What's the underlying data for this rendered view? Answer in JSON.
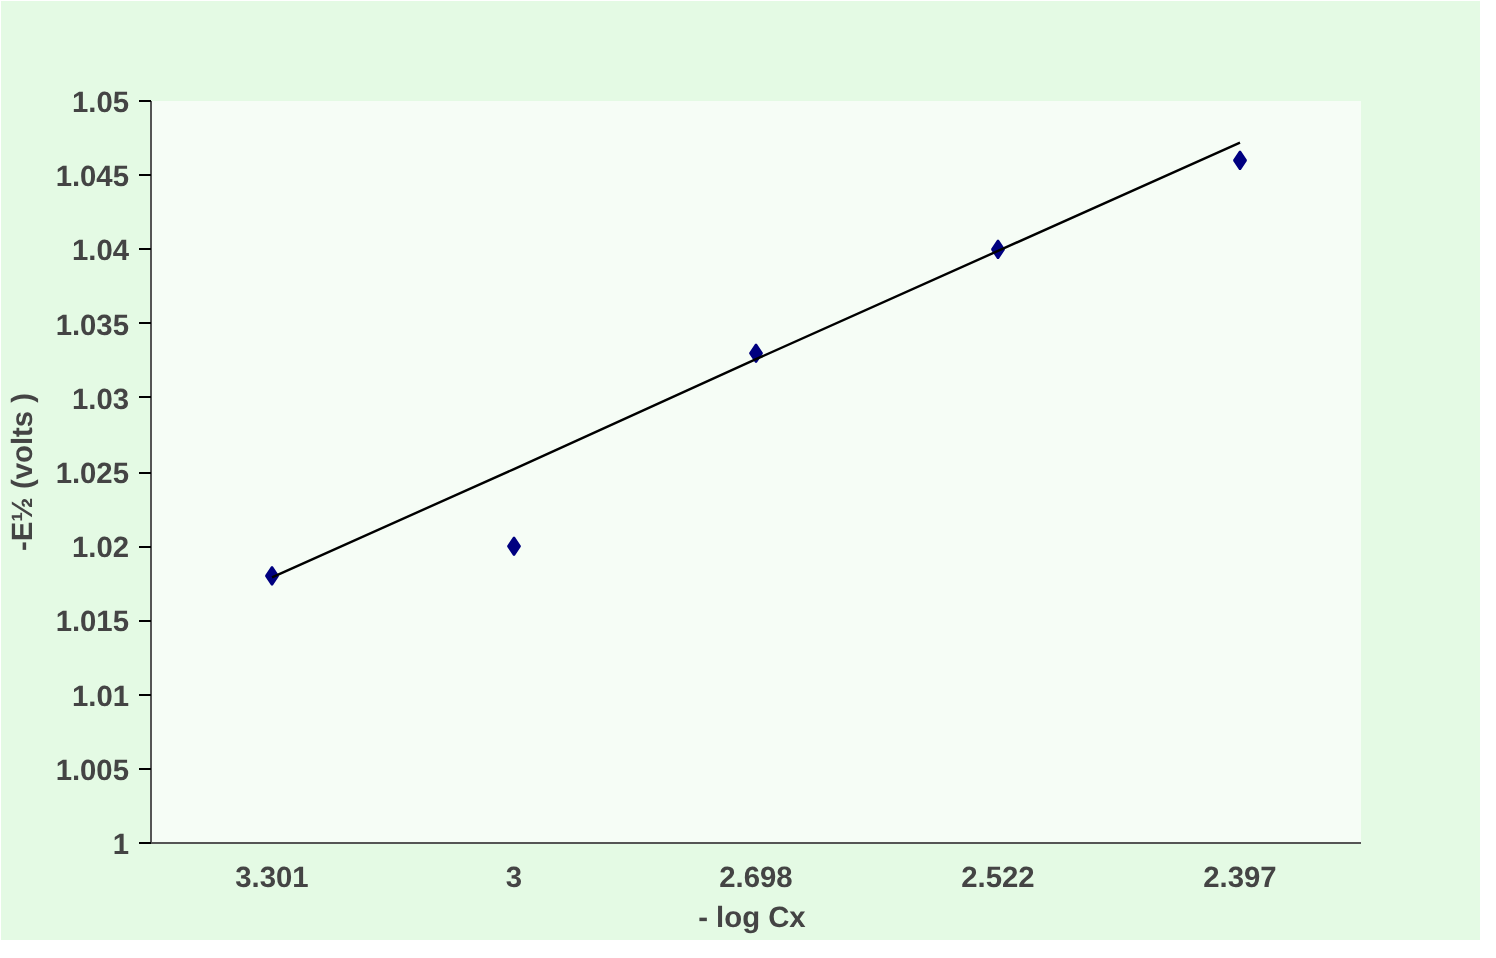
{
  "chart_data": {
    "type": "scatter",
    "xlabel": "- log  Cx",
    "ylabel": "-E½ (volts )",
    "categories": [
      "3.301",
      "3",
      "2.698",
      "2.522",
      "2.397"
    ],
    "ylim": [
      1,
      1.05
    ],
    "yticks": [
      1,
      1.005,
      1.01,
      1.015,
      1.02,
      1.025,
      1.03,
      1.035,
      1.04,
      1.045,
      1.05
    ],
    "grid": false,
    "series": [
      {
        "marker": "diamond",
        "color": "#000080",
        "values": [
          1.018,
          1.02,
          1.033,
          1.04,
          1.046
        ]
      },
      {
        "type": "line",
        "color": "#000000",
        "x": [
          "3.301",
          "3",
          "2.698",
          "2.522",
          "2.397"
        ],
        "values": [
          1.0179,
          1.0252,
          1.0326,
          1.0399,
          1.0472
        ]
      }
    ]
  }
}
